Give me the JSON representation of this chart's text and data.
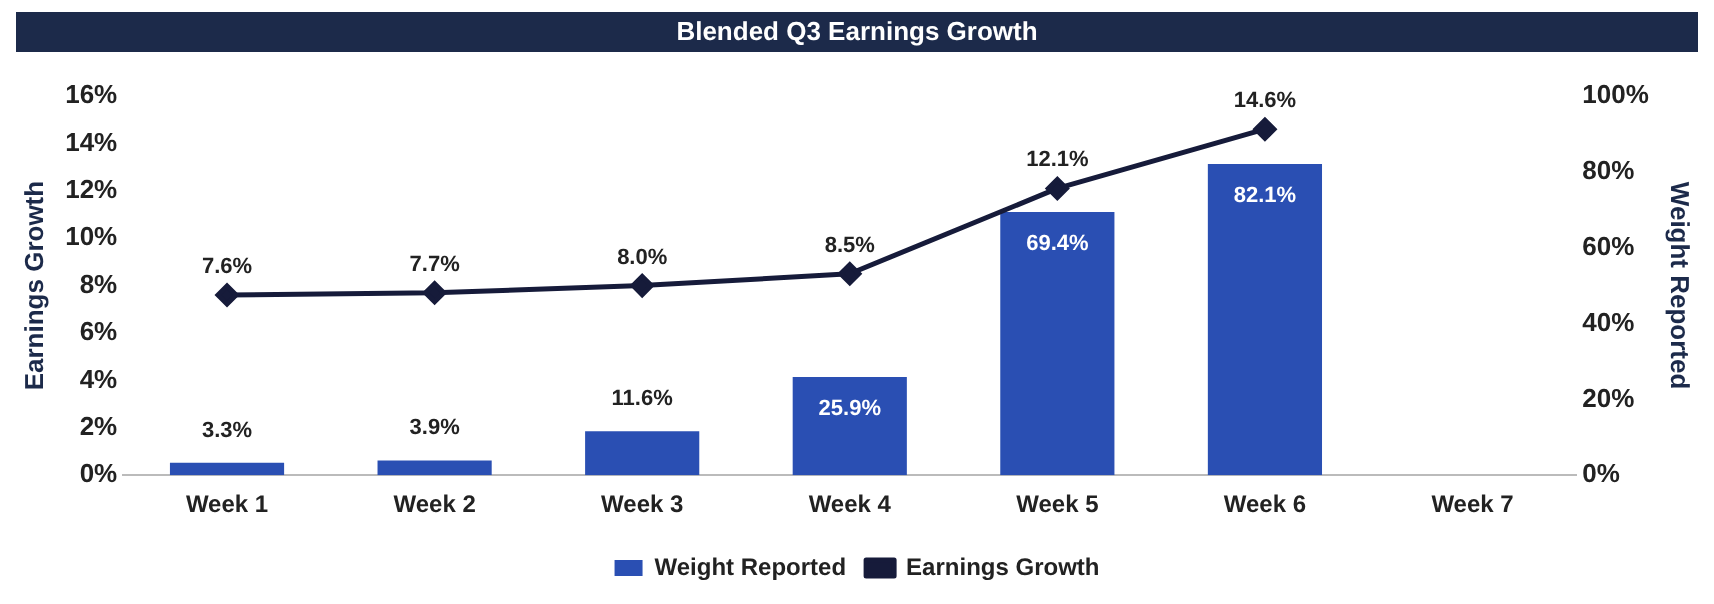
{
  "chart_data": {
    "type": "bar",
    "title": "Blended Q3 Earnings Growth",
    "ylabel": "Earnings Growth",
    "y2label": "Weight Reported",
    "categories": [
      "Week 1",
      "Week 2",
      "Week 3",
      "Week 4",
      "Week 5",
      "Week 6",
      "Week 7"
    ],
    "series": [
      {
        "name": "Weight Reported",
        "axis": "y2",
        "color": "#2a4fb3",
        "values": [
          3.3,
          3.9,
          11.6,
          25.9,
          69.4,
          82.1,
          null
        ],
        "value_labels": [
          "3.3%",
          "3.9%",
          "11.6%",
          "25.9%",
          "69.4%",
          "82.1%",
          null
        ]
      },
      {
        "name": "Earnings Growth",
        "type": "line",
        "axis": "y",
        "color": "#161b3a",
        "marker": "diamond",
        "values": [
          7.6,
          7.7,
          8.0,
          8.5,
          12.1,
          14.6,
          null
        ],
        "value_labels": [
          "7.6%",
          "7.7%",
          "8.0%",
          "8.5%",
          "12.1%",
          "14.6%",
          null
        ]
      }
    ],
    "ylim": [
      0,
      16
    ],
    "yticks": [
      {
        "value": 0,
        "label": "0%"
      },
      {
        "value": 2,
        "label": "2%"
      },
      {
        "value": 4,
        "label": "4%"
      },
      {
        "value": 6,
        "label": "6%"
      },
      {
        "value": 8,
        "label": "8%"
      },
      {
        "value": 10,
        "label": "10%"
      },
      {
        "value": 12,
        "label": "12%"
      },
      {
        "value": 14,
        "label": "14%"
      },
      {
        "value": 16,
        "label": "16%"
      }
    ],
    "y2lim": [
      0,
      100
    ],
    "y2ticks": [
      {
        "value": 0,
        "label": "0%"
      },
      {
        "value": 20,
        "label": "20%"
      },
      {
        "value": 40,
        "label": "40%"
      },
      {
        "value": 60,
        "label": "60%"
      },
      {
        "value": 80,
        "label": "80%"
      },
      {
        "value": 100,
        "label": "100%"
      }
    ],
    "grid": false,
    "legend": "bottom"
  }
}
